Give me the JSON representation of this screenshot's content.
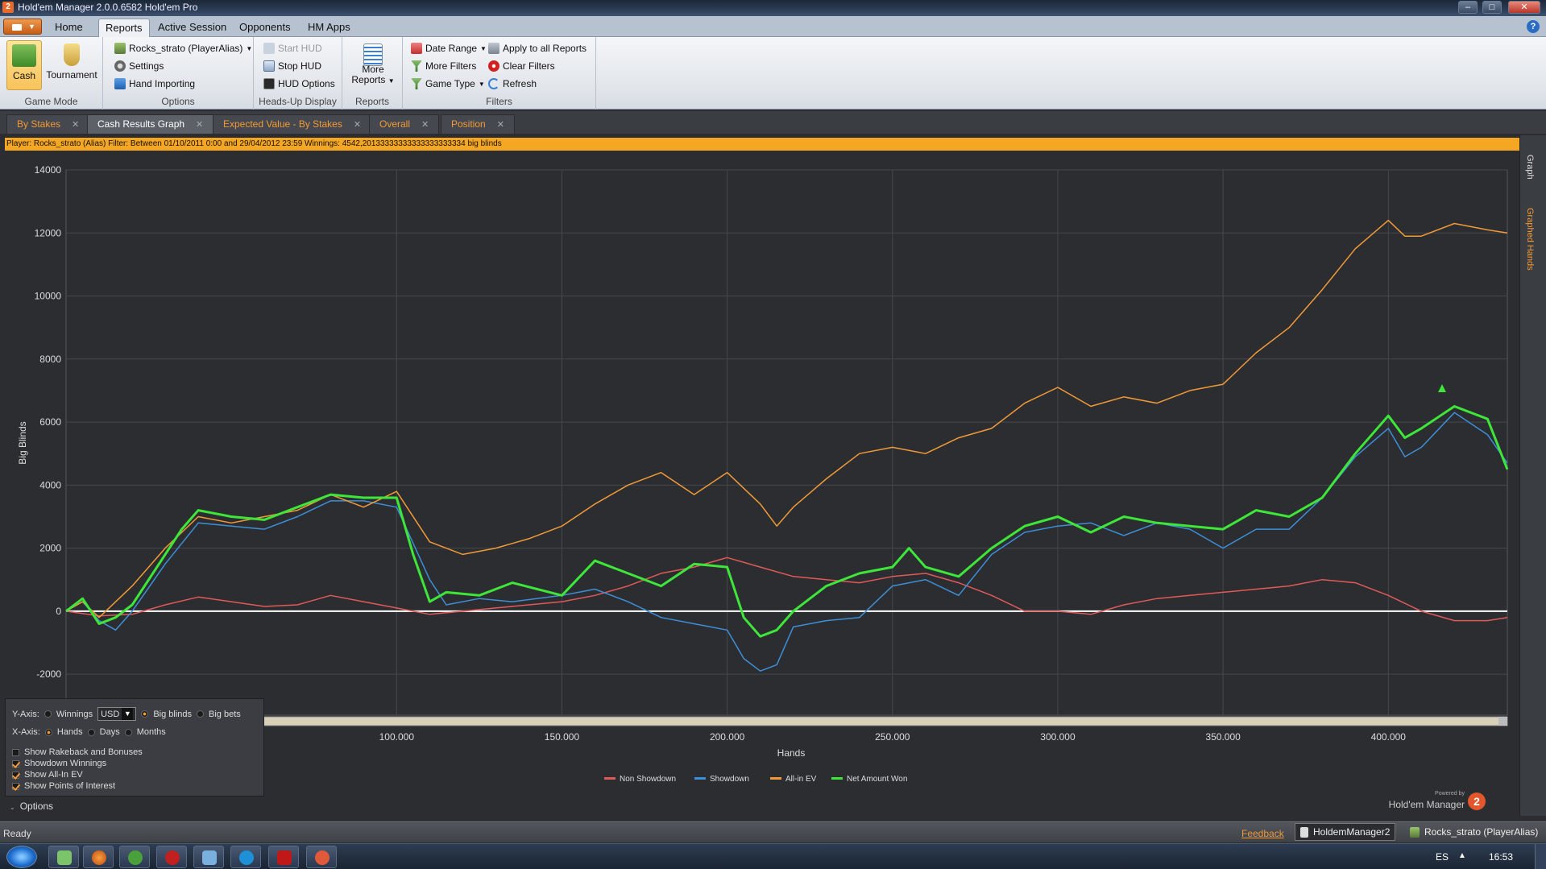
{
  "window": {
    "title": "Hold'em Manager 2.0.0.6582 Hold'em Pro",
    "minimize": "–",
    "maximize": "□",
    "close": "✕",
    "app_icon_text": "2"
  },
  "ribbon_tabs": [
    "Home",
    "Reports",
    "Active Session",
    "Opponents",
    "HM Apps"
  ],
  "ribbon_active_tab": "Reports",
  "help": "?",
  "ribbon": {
    "game_mode": {
      "label": "Game Mode",
      "cash": "Cash",
      "tournament": "Tournament"
    },
    "options": {
      "label": "Options",
      "player_alias": "Rocks_strato (PlayerAlias)",
      "settings": "Settings",
      "hand_importing": "Hand Importing"
    },
    "hud": {
      "label": "Heads-Up Display",
      "start": "Start HUD",
      "stop": "Stop HUD",
      "options": "HUD Options"
    },
    "reports": {
      "label": "Reports",
      "more_line1": "More",
      "more_line2": "Reports"
    },
    "filters": {
      "label": "Filters",
      "date_range": "Date Range",
      "more_filters": "More Filters",
      "game_type": "Game Type",
      "apply_all": "Apply to all Reports",
      "clear": "Clear Filters",
      "refresh": "Refresh"
    }
  },
  "doc_tabs": [
    "By Stakes",
    "Cash Results Graph",
    "Expected Value - By Stakes",
    "Overall",
    "Position"
  ],
  "doc_tab_active": "Cash Results Graph",
  "filter_bar": "Player: Rocks_strato (Alias)  Filter:  Between 01/10/2011 0:00 and 29/04/2012 23:59  Winnings:  4542,20133333333333333333334 big blinds",
  "side_tabs": {
    "graph": "Graph",
    "graphed_hands": "Graphed Hands"
  },
  "options_panel": {
    "y_axis": "Y-Axis:",
    "winnings": "Winnings",
    "currency": "USD",
    "big_blinds": "Big blinds",
    "big_bets": "Big bets",
    "x_axis": "X-Axis:",
    "hands": "Hands",
    "days": "Days",
    "months": "Months",
    "show_rakeback": "Show Rakeback and Bonuses",
    "showdown_winnings": "Showdown Winnings",
    "show_allin_ev": "Show All-In EV",
    "show_points": "Show Points of Interest",
    "toggle": "Options"
  },
  "brand": {
    "powered_by": "Powered by",
    "name": "Hold'em Manager",
    "logo": "2"
  },
  "status_bar": {
    "status": "Ready",
    "feedback": "Feedback",
    "app_name": "HoldemManager2",
    "player": "Rocks_strato (PlayerAlias)"
  },
  "taskbar": {
    "language": "ES",
    "clock": "16:53"
  },
  "chart_data": {
    "type": "line",
    "xlabel": "Hands",
    "ylabel": "Big Blinds",
    "xlim": [
      0,
      436000
    ],
    "ylim": [
      -3300,
      14000
    ],
    "y_ticks": [
      -2000,
      0,
      2000,
      4000,
      6000,
      8000,
      10000,
      12000,
      14000
    ],
    "y_tick_labels": [
      "-2000",
      "0",
      "2000",
      "4000",
      "6000",
      "8000",
      "10000",
      "12000",
      "14000"
    ],
    "x_ticks": [
      100000,
      150000,
      200000,
      250000,
      300000,
      350000,
      400000
    ],
    "x_tick_labels": [
      "100.000",
      "150.000",
      "200.000",
      "250.000",
      "300.000",
      "350.000",
      "400.000"
    ],
    "grid": true,
    "legend_position": "bottom-center",
    "series": [
      {
        "name": "Non Showdown",
        "color": "#e05a5a",
        "x": [
          0,
          10000,
          20000,
          30000,
          40000,
          50000,
          60000,
          70000,
          80000,
          90000,
          100000,
          110000,
          120000,
          130000,
          140000,
          150000,
          160000,
          170000,
          180000,
          190000,
          200000,
          210000,
          220000,
          230000,
          240000,
          250000,
          260000,
          270000,
          280000,
          290000,
          300000,
          310000,
          320000,
          330000,
          340000,
          350000,
          360000,
          370000,
          380000,
          390000,
          400000,
          410000,
          420000,
          430000,
          436000
        ],
        "y": [
          0,
          -150,
          -100,
          200,
          450,
          300,
          150,
          200,
          500,
          300,
          100,
          -100,
          0,
          100,
          200,
          300,
          500,
          800,
          1200,
          1400,
          1700,
          1400,
          1100,
          1000,
          900,
          1100,
          1200,
          900,
          500,
          0,
          0,
          -100,
          200,
          400,
          500,
          600,
          700,
          800,
          1000,
          900,
          500,
          0,
          -300,
          -300,
          -200
        ]
      },
      {
        "name": "Showdown",
        "color": "#3d8fd8",
        "x": [
          0,
          5000,
          10000,
          15000,
          20000,
          30000,
          40000,
          50000,
          60000,
          70000,
          80000,
          90000,
          100000,
          110000,
          115000,
          125000,
          135000,
          150000,
          160000,
          170000,
          180000,
          190000,
          200000,
          205000,
          210000,
          215000,
          220000,
          230000,
          240000,
          250000,
          260000,
          270000,
          280000,
          290000,
          300000,
          310000,
          320000,
          330000,
          340000,
          350000,
          360000,
          370000,
          380000,
          390000,
          400000,
          405000,
          410000,
          420000,
          430000,
          436000
        ],
        "y": [
          0,
          300,
          -300,
          -600,
          0,
          1500,
          2800,
          2700,
          2600,
          3000,
          3500,
          3500,
          3300,
          1000,
          200,
          400,
          300,
          500,
          700,
          300,
          -200,
          -400,
          -600,
          -1500,
          -1900,
          -1700,
          -500,
          -300,
          -200,
          800,
          1000,
          500,
          1800,
          2500,
          2700,
          2800,
          2400,
          2800,
          2600,
          2000,
          2600,
          2600,
          3600,
          4900,
          5800,
          4900,
          5200,
          6300,
          5600,
          4700
        ]
      },
      {
        "name": "All-in EV",
        "color": "#f29a38",
        "x": [
          0,
          5000,
          10000,
          20000,
          30000,
          40000,
          50000,
          60000,
          70000,
          80000,
          90000,
          100000,
          110000,
          120000,
          130000,
          140000,
          150000,
          160000,
          170000,
          180000,
          190000,
          200000,
          210000,
          215000,
          220000,
          230000,
          240000,
          250000,
          260000,
          270000,
          280000,
          290000,
          300000,
          310000,
          320000,
          330000,
          340000,
          350000,
          360000,
          370000,
          380000,
          390000,
          400000,
          405000,
          410000,
          420000,
          430000,
          436000
        ],
        "y": [
          0,
          300,
          -200,
          800,
          2000,
          3000,
          2800,
          3000,
          3200,
          3700,
          3300,
          3800,
          2200,
          1800,
          2000,
          2300,
          2700,
          3400,
          4000,
          4400,
          3700,
          4400,
          3400,
          2700,
          3300,
          4200,
          5000,
          5200,
          5000,
          5500,
          5800,
          6600,
          7100,
          6500,
          6800,
          6600,
          7000,
          7200,
          8200,
          9000,
          10200,
          11500,
          12400,
          11900,
          11900,
          12300,
          12100,
          12000
        ]
      },
      {
        "name": "Net Amount Won",
        "color": "#3ee63a",
        "x": [
          0,
          5000,
          10000,
          15000,
          20000,
          30000,
          35000,
          40000,
          50000,
          60000,
          70000,
          80000,
          90000,
          100000,
          105000,
          110000,
          115000,
          125000,
          135000,
          150000,
          160000,
          170000,
          180000,
          190000,
          200000,
          205000,
          210000,
          215000,
          220000,
          230000,
          240000,
          250000,
          255000,
          260000,
          270000,
          280000,
          290000,
          300000,
          310000,
          320000,
          330000,
          340000,
          350000,
          360000,
          370000,
          380000,
          390000,
          400000,
          405000,
          410000,
          420000,
          430000,
          436000
        ],
        "y": [
          0,
          400,
          -400,
          -200,
          200,
          1800,
          2600,
          3200,
          3000,
          2900,
          3300,
          3700,
          3600,
          3600,
          1800,
          300,
          600,
          500,
          900,
          500,
          1600,
          1200,
          800,
          1500,
          1400,
          -200,
          -800,
          -600,
          0,
          800,
          1200,
          1400,
          2000,
          1400,
          1100,
          2000,
          2700,
          3000,
          2500,
          3000,
          2800,
          2700,
          2600,
          3200,
          3000,
          3600,
          5000,
          6200,
          5500,
          5800,
          6500,
          6100,
          4500
        ]
      }
    ]
  }
}
